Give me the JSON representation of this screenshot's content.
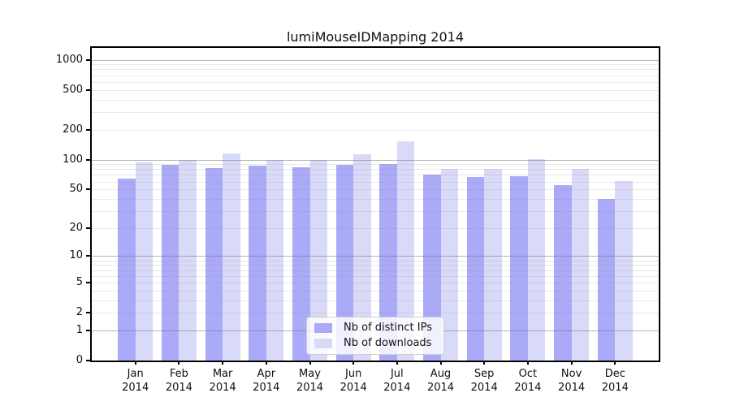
{
  "chart_data": {
    "type": "bar",
    "title": "lumiMouseIDMapping 2014",
    "categories": [
      "Jan",
      "Feb",
      "Mar",
      "Apr",
      "May",
      "Jun",
      "Jul",
      "Aug",
      "Sep",
      "Oct",
      "Nov",
      "Dec"
    ],
    "category_year": "2014",
    "series": [
      {
        "name": "Nb of distinct IPs",
        "color": "#aaaaf8",
        "values": [
          64,
          88,
          82,
          87,
          83,
          88,
          91,
          71,
          67,
          68,
          55,
          40
        ]
      },
      {
        "name": "Nb of downloads",
        "color": "#d9d9f8",
        "values": [
          94,
          100,
          116,
          100,
          99,
          113,
          154,
          80,
          81,
          101,
          80,
          61
        ]
      }
    ],
    "y_scale": "log10(value+1)",
    "y_ticks": [
      "0",
      "1",
      "2",
      "5",
      "10",
      "20",
      "50",
      "100",
      "200",
      "500",
      "1000"
    ],
    "y_major_gridlines": [
      1,
      10,
      100,
      1000
    ],
    "y_max": 1310,
    "xlabel": "",
    "ylabel": "",
    "grid": true,
    "legend_position": "bottom-center"
  },
  "colors": {
    "background": "#ffffff",
    "axis": "#000000",
    "major_grid": "#b2b2b2",
    "minor_grid": "#e7e7e7",
    "text": "#111111"
  }
}
